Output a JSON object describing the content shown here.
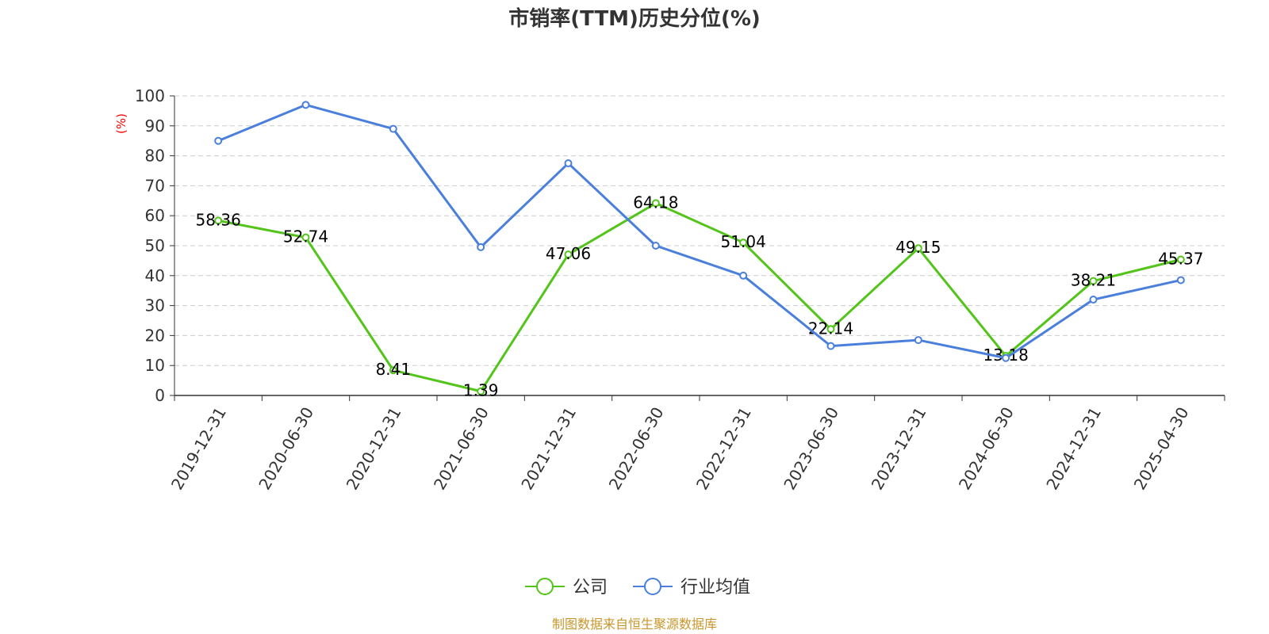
{
  "chart_data": {
    "type": "line",
    "title": "市销率(TTM)历史分位(%)",
    "ylabel": "(%)",
    "xlabel": "",
    "ylim": [
      0,
      100
    ],
    "yticks": [
      0,
      10,
      20,
      30,
      40,
      50,
      60,
      70,
      80,
      90,
      100
    ],
    "grid": true,
    "legend_position": "bottom-center",
    "categories": [
      "2019-12-31",
      "2020-06-30",
      "2020-12-31",
      "2021-06-30",
      "2021-12-31",
      "2022-06-30",
      "2022-12-31",
      "2023-06-30",
      "2023-12-31",
      "2024-06-30",
      "2024-12-31",
      "2025-04-30"
    ],
    "series": [
      {
        "name": "公司",
        "color": "#52c41a",
        "show_labels": true,
        "values": [
          58.36,
          52.74,
          8.41,
          1.39,
          47.06,
          64.18,
          51.04,
          22.14,
          49.15,
          13.18,
          38.21,
          45.37
        ],
        "labels": [
          "58.36",
          "52.74",
          "8.41",
          "1.39",
          "47.06",
          "64.18",
          "51.04",
          "22.14",
          "49.15",
          "13.18",
          "38.21",
          "45.37"
        ]
      },
      {
        "name": "行业均值",
        "color": "#4a7fdc",
        "show_labels": false,
        "values": [
          85,
          97,
          89,
          49.5,
          77.5,
          50,
          40,
          16.5,
          18.5,
          12.5,
          32,
          38.5
        ]
      }
    ],
    "source": "制图数据来自恒生聚源数据库"
  }
}
